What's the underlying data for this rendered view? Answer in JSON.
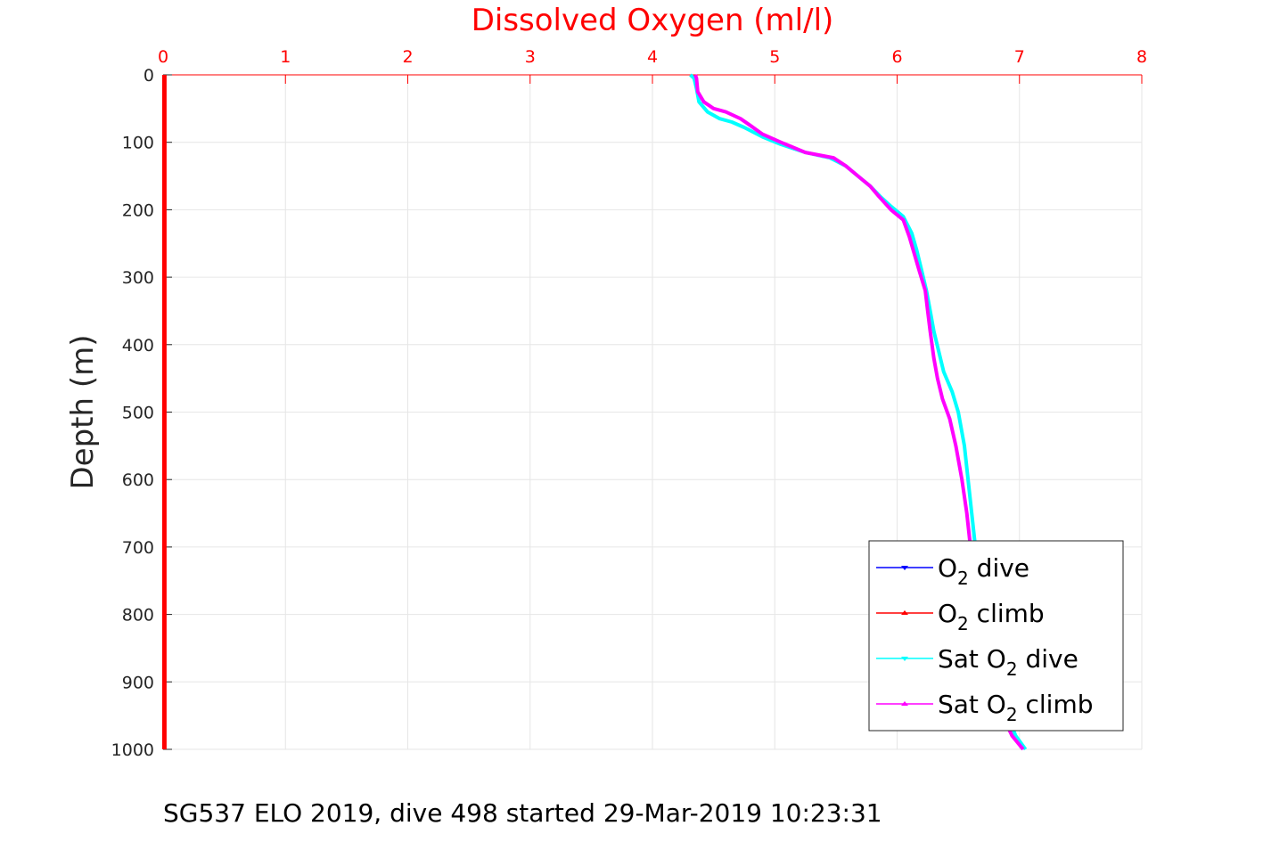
{
  "chart_data": {
    "type": "line",
    "title": "Dissolved Oxygen (ml/l)",
    "ylabel": "Depth (m)",
    "xlabel": "",
    "xlim": [
      0,
      8
    ],
    "ylim": [
      0,
      1000
    ],
    "y_reversed": true,
    "x_axis_position": "top",
    "grid": true,
    "legend_position": "bottom-right",
    "xticks": [
      "0",
      "1",
      "2",
      "3",
      "4",
      "5",
      "6",
      "7",
      "8"
    ],
    "yticks": [
      "0",
      "100",
      "200",
      "300",
      "400",
      "500",
      "600",
      "700",
      "800",
      "900",
      "1000"
    ],
    "series": [
      {
        "name": "O2 dive",
        "legend_main": "O",
        "legend_sub": "2",
        "legend_rest": " dive",
        "color": "#0000ff",
        "x": [
          0.01,
          0.01
        ],
        "y": [
          0,
          1000
        ]
      },
      {
        "name": "O2 climb",
        "legend_main": "O",
        "legend_sub": "2",
        "legend_rest": " climb",
        "color": "#ff0000",
        "x": [
          0.01,
          0.01
        ],
        "y": [
          0,
          1000
        ]
      },
      {
        "name": "Sat O2 dive",
        "legend_main": "Sat O",
        "legend_sub": "2",
        "legend_rest": " dive",
        "color": "#00ffff",
        "x": [
          4.31,
          4.34,
          4.36,
          4.38,
          4.45,
          4.55,
          4.65,
          4.75,
          4.9,
          5.05,
          5.25,
          5.45,
          5.58,
          5.68,
          5.78,
          5.86,
          5.95,
          6.05,
          6.12,
          6.16,
          6.2,
          6.24,
          6.27,
          6.3,
          6.34,
          6.38,
          6.45,
          6.5,
          6.55,
          6.58,
          6.61,
          6.64,
          6.66,
          6.69,
          6.72,
          6.77,
          6.83,
          6.9,
          6.97,
          7.05
        ],
        "y": [
          0,
          5,
          20,
          40,
          55,
          65,
          70,
          78,
          92,
          103,
          115,
          123,
          135,
          150,
          165,
          180,
          195,
          210,
          235,
          260,
          290,
          320,
          350,
          380,
          410,
          440,
          470,
          500,
          550,
          600,
          650,
          700,
          720,
          750,
          800,
          850,
          900,
          950,
          980,
          1000
        ]
      },
      {
        "name": "Sat O2 climb",
        "legend_main": "Sat O",
        "legend_sub": "2",
        "legend_rest": " climb",
        "color": "#ff00ff",
        "x": [
          4.35,
          4.36,
          4.37,
          4.42,
          4.5,
          4.6,
          4.72,
          4.8,
          4.9,
          5.05,
          5.25,
          5.48,
          5.58,
          5.68,
          5.78,
          5.85,
          5.95,
          6.05,
          6.1,
          6.14,
          6.18,
          6.23,
          6.25,
          6.27,
          6.3,
          6.33,
          6.37,
          6.43,
          6.48,
          6.53,
          6.57,
          6.6,
          6.63,
          6.66,
          6.69,
          6.73,
          6.79,
          6.86,
          6.94,
          7.03
        ],
        "y": [
          0,
          5,
          25,
          40,
          50,
          55,
          65,
          75,
          88,
          100,
          115,
          123,
          135,
          150,
          165,
          180,
          200,
          215,
          240,
          265,
          290,
          320,
          350,
          380,
          420,
          450,
          480,
          510,
          550,
          600,
          650,
          700,
          720,
          750,
          800,
          850,
          900,
          950,
          980,
          1000
        ]
      }
    ]
  },
  "footer": {
    "caption": "SG537 ELO 2019, dive 498 started 29-Mar-2019 10:23:31"
  }
}
